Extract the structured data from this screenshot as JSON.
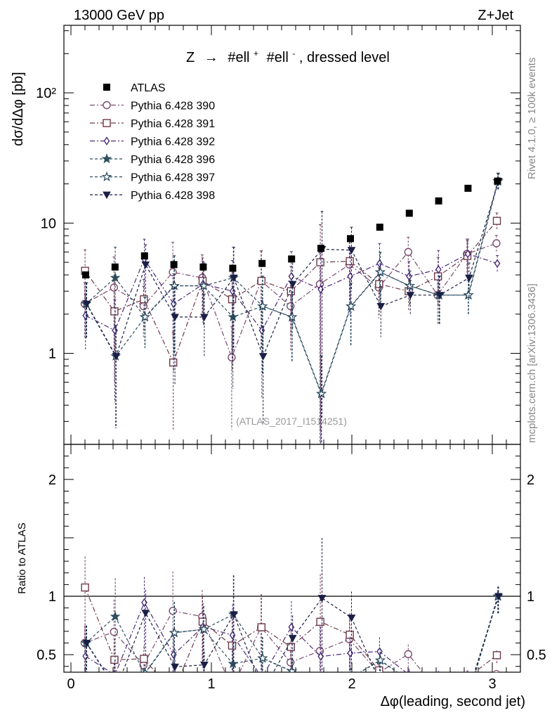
{
  "header": {
    "left": "13000 GeV pp",
    "right": "Z+Jet"
  },
  "side_labels": {
    "rivet": "Rivet 4.1.0, ≥ 100k events",
    "mcplots": "mcplots.cern.ch [arXiv:1306.3436]"
  },
  "chart_data": {
    "type": "scatter",
    "title": "Z → #ell+ #ell-, dressed level",
    "title_parts": {
      "prefix": "Z",
      "arrow": "→",
      "sup1": "+",
      "sup2": "-",
      "word": "#ell",
      "suffix": ", dressed level"
    },
    "analysis_id": "(ATLAS_2017_I1514251)",
    "xlabel": "Δφ(leading, second jet)",
    "ylabel": "dσ/dΔφ [pb]",
    "ratio_ylabel": "Ratio to ATLAS",
    "xlim": [
      -0.05,
      3.2
    ],
    "ylim": [
      0.2,
      330
    ],
    "yscale": "log",
    "ratio_ylim": [
      0.35,
      2.3
    ],
    "x_ticks": [
      "0",
      "1",
      "2",
      "3"
    ],
    "y_ticks": [
      "1",
      "10",
      "10²"
    ],
    "ratio_ticks": [
      "0.5",
      "1",
      "2"
    ],
    "x": [
      0.105,
      0.314,
      0.524,
      0.733,
      0.942,
      1.152,
      1.361,
      1.571,
      1.78,
      1.99,
      2.199,
      2.409,
      2.618,
      2.827,
      3.037
    ],
    "data": {
      "name": "ATLAS",
      "values": [
        4.0,
        4.6,
        5.6,
        4.8,
        4.6,
        4.5,
        4.9,
        5.3,
        6.4,
        7.6,
        9.3,
        11.9,
        14.8,
        18.5,
        21.0
      ]
    },
    "series": [
      {
        "name": "Pythia 6.428 390",
        "marker": "circle-open",
        "dash": "dashdot",
        "color": "#7a4a6e",
        "values": [
          2.4,
          3.2,
          2.3,
          4.2,
          3.8,
          0.93,
          3.6,
          2.3,
          3.4,
          4.8,
          3.2,
          6.0,
          2.8,
          5.8,
          7.0
        ]
      },
      {
        "name": "Pythia 6.428 391",
        "marker": "square-open",
        "dash": "dashdot",
        "color": "#6e3a48",
        "values": [
          4.3,
          2.1,
          2.6,
          0.85,
          3.6,
          2.6,
          3.6,
          3.0,
          5.0,
          5.1,
          3.4,
          3.0,
          3.9,
          5.6,
          10.4
        ]
      },
      {
        "name": "Pythia 6.428 392",
        "marker": "diamond-open",
        "dash": "dashdot",
        "color": "#4b2a7a",
        "values": [
          1.95,
          1.5,
          5.3,
          2.4,
          3.4,
          3.0,
          1.5,
          3.9,
          3.1,
          3.9,
          4.9,
          3.9,
          4.4,
          5.8,
          4.9
        ]
      },
      {
        "name": "Pythia 6.428 396",
        "marker": "star-filled",
        "dash": "dashed",
        "color": "#2e4e5e",
        "values": [
          2.4,
          3.8,
          1.9,
          3.3,
          3.3,
          1.9,
          2.3,
          1.9,
          0.49,
          2.3,
          4.2,
          3.3,
          2.8,
          2.8,
          21.0
        ]
      },
      {
        "name": "Pythia 6.428 397",
        "marker": "star-open",
        "dash": "dashed",
        "color": "#2a4a60",
        "values": [
          2.4,
          0.95,
          1.9,
          3.3,
          3.3,
          3.8,
          2.3,
          1.9,
          0.49,
          2.3,
          4.2,
          3.3,
          2.8,
          2.8,
          21.0
        ]
      },
      {
        "name": "Pythia 6.428 398",
        "marker": "triangle-down-filled",
        "dash": "dashed",
        "color": "#1a1f45",
        "values": [
          2.4,
          0.95,
          4.8,
          1.9,
          1.9,
          3.8,
          0.95,
          3.4,
          6.3,
          6.2,
          2.3,
          2.8,
          2.8,
          3.8,
          21.0
        ]
      }
    ],
    "error_frac": [
      0.45,
      0.72,
      0.42,
      0.7,
      0.5,
      0.72,
      0.7,
      0.55,
      0.95,
      0.5,
      0.42,
      0.3,
      0.4,
      0.3,
      0.15
    ]
  }
}
